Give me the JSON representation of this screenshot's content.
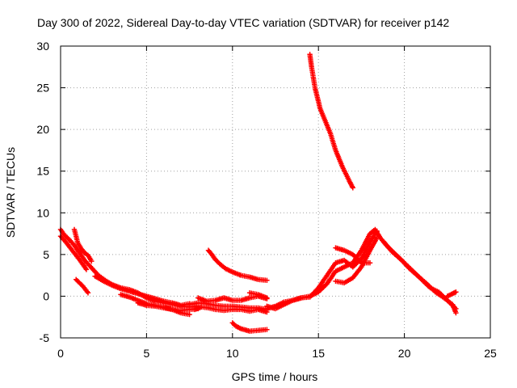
{
  "colors": {
    "series": "#ff0000",
    "grid": "#a0a0a0",
    "axis": "#000000"
  },
  "chart_data": {
    "type": "scatter",
    "title": "Day 300 of 2022, Sidereal Day-to-day VTEC variation (SDTVAR) for receiver p142",
    "xlabel": "GPS time / hours",
    "ylabel": "SDTVAR / TECUs",
    "xlim": [
      0,
      25
    ],
    "ylim": [
      -5,
      30
    ],
    "xticks": [
      0,
      5,
      10,
      15,
      20,
      25
    ],
    "yticks": [
      -5,
      0,
      5,
      10,
      15,
      20,
      25,
      30
    ],
    "grid": true,
    "marker": "plus",
    "series": [
      {
        "name": "SDTVAR",
        "segments": [
          [
            [
              0.0,
              8.0
            ],
            [
              0.2,
              7.4
            ],
            [
              0.5,
              6.8
            ],
            [
              0.8,
              6.1
            ],
            [
              1.1,
              5.2
            ],
            [
              1.4,
              4.3
            ],
            [
              1.8,
              3.4
            ],
            [
              2.2,
              2.5
            ],
            [
              2.6,
              1.9
            ],
            [
              3.0,
              1.4
            ],
            [
              3.5,
              1.0
            ],
            [
              4.0,
              0.8
            ],
            [
              4.5,
              0.4
            ],
            [
              5.0,
              -0.2
            ],
            [
              5.5,
              -0.6
            ],
            [
              6.0,
              -0.8
            ],
            [
              6.5,
              -1.0
            ],
            [
              7.0,
              -1.2
            ],
            [
              7.5,
              -1.3
            ],
            [
              8.0,
              -1.2
            ]
          ],
          [
            [
              0.0,
              7.2
            ],
            [
              0.3,
              6.5
            ],
            [
              0.6,
              5.7
            ],
            [
              0.9,
              4.9
            ],
            [
              1.2,
              4.1
            ],
            [
              1.5,
              3.2
            ]
          ],
          [
            [
              0.8,
              8.0
            ],
            [
              1.0,
              6.4
            ],
            [
              1.2,
              5.7
            ],
            [
              1.4,
              5.2
            ],
            [
              1.6,
              4.9
            ],
            [
              1.8,
              4.2
            ]
          ],
          [
            [
              0.9,
              2.0
            ],
            [
              1.1,
              1.6
            ],
            [
              1.3,
              1.2
            ],
            [
              1.6,
              0.4
            ]
          ],
          [
            [
              2.0,
              2.4
            ],
            [
              2.5,
              1.8
            ],
            [
              3.0,
              1.3
            ],
            [
              3.5,
              0.9
            ],
            [
              4.0,
              0.6
            ],
            [
              4.5,
              0.3
            ],
            [
              5.0,
              0.0
            ],
            [
              5.5,
              -0.3
            ],
            [
              6.0,
              -0.6
            ],
            [
              6.5,
              -0.8
            ],
            [
              7.0,
              -1.1
            ],
            [
              7.5,
              -0.9
            ]
          ],
          [
            [
              3.5,
              0.2
            ],
            [
              4.0,
              -0.1
            ],
            [
              4.5,
              -0.5
            ],
            [
              5.0,
              -0.9
            ],
            [
              5.5,
              -1.1
            ],
            [
              6.0,
              -1.3
            ],
            [
              6.5,
              -1.6
            ],
            [
              7.0,
              -2.0
            ],
            [
              7.5,
              -2.2
            ]
          ],
          [
            [
              4.5,
              -0.8
            ],
            [
              5.0,
              -1.1
            ],
            [
              5.5,
              -1.2
            ],
            [
              6.0,
              -1.4
            ],
            [
              6.5,
              -1.6
            ],
            [
              7.0,
              -1.7
            ],
            [
              7.5,
              -1.6
            ],
            [
              8.0,
              -1.5
            ]
          ],
          [
            [
              7.5,
              -1.0
            ],
            [
              8.0,
              -0.8
            ],
            [
              8.5,
              -0.9
            ],
            [
              9.0,
              -1.1
            ],
            [
              9.5,
              -1.2
            ],
            [
              10.0,
              -1.2
            ],
            [
              10.5,
              -1.3
            ],
            [
              11.0,
              -1.4
            ],
            [
              11.5,
              -1.4
            ],
            [
              12.0,
              -1.6
            ]
          ],
          [
            [
              7.8,
              -1.6
            ],
            [
              8.2,
              -1.3
            ],
            [
              8.6,
              -1.4
            ],
            [
              9.0,
              -1.6
            ],
            [
              9.5,
              -1.7
            ],
            [
              10.0,
              -1.6
            ],
            [
              10.5,
              -1.6
            ],
            [
              11.0,
              -1.8
            ],
            [
              11.5,
              -1.6
            ],
            [
              12.0,
              -1.9
            ]
          ],
          [
            [
              8.0,
              -0.2
            ],
            [
              8.5,
              -0.6
            ],
            [
              9.0,
              -0.5
            ],
            [
              9.5,
              -0.2
            ],
            [
              10.0,
              -0.5
            ],
            [
              10.5,
              -0.5
            ],
            [
              11.0,
              -0.2
            ],
            [
              11.5,
              0.0
            ],
            [
              12.0,
              -0.3
            ]
          ],
          [
            [
              8.6,
              5.5
            ],
            [
              8.8,
              5.0
            ],
            [
              9.0,
              4.4
            ],
            [
              9.3,
              3.8
            ],
            [
              9.6,
              3.3
            ],
            [
              10.0,
              2.9
            ],
            [
              10.5,
              2.5
            ],
            [
              11.0,
              2.3
            ],
            [
              11.5,
              2.0
            ],
            [
              12.0,
              1.9
            ]
          ],
          [
            [
              10.0,
              -3.2
            ],
            [
              10.2,
              -3.6
            ],
            [
              10.5,
              -3.9
            ],
            [
              11.0,
              -4.2
            ],
            [
              11.5,
              -4.1
            ],
            [
              12.0,
              -4.0
            ]
          ],
          [
            [
              11.0,
              0.4
            ],
            [
              11.5,
              0.2
            ],
            [
              12.0,
              -0.2
            ]
          ],
          [
            [
              12.0,
              -1.2
            ],
            [
              12.5,
              -1.5
            ],
            [
              13.0,
              -1.0
            ],
            [
              13.5,
              -0.5
            ],
            [
              14.0,
              -0.2
            ],
            [
              14.5,
              0.0
            ],
            [
              15.0,
              0.5
            ],
            [
              15.5,
              1.5
            ],
            [
              16.0,
              3.0
            ],
            [
              16.5,
              3.5
            ],
            [
              17.0,
              4.0
            ],
            [
              17.5,
              5.5
            ],
            [
              18.0,
              7.5
            ],
            [
              18.3,
              8.0
            ],
            [
              18.6,
              7.0
            ]
          ],
          [
            [
              12.0,
              -1.5
            ],
            [
              12.5,
              -1.2
            ],
            [
              13.0,
              -0.7
            ],
            [
              13.5,
              -0.5
            ],
            [
              14.0,
              -0.2
            ],
            [
              14.5,
              -0.1
            ],
            [
              15.0,
              1.0
            ],
            [
              15.5,
              2.5
            ],
            [
              16.0,
              4.0
            ],
            [
              16.5,
              4.3
            ],
            [
              17.0,
              3.5
            ],
            [
              17.5,
              4.5
            ],
            [
              18.0,
              6.5
            ],
            [
              18.4,
              7.8
            ]
          ],
          [
            [
              16.0,
              5.8
            ],
            [
              16.5,
              5.5
            ],
            [
              17.0,
              5.0
            ],
            [
              17.5,
              4.0
            ],
            [
              18.0,
              4.0
            ]
          ],
          [
            [
              16.0,
              1.8
            ],
            [
              16.5,
              1.6
            ],
            [
              17.0,
              2.2
            ],
            [
              17.5,
              3.5
            ],
            [
              18.0,
              5.5
            ],
            [
              18.4,
              7.0
            ]
          ],
          [
            [
              14.5,
              29.0
            ],
            [
              14.6,
              27.5
            ],
            [
              14.8,
              25.0
            ],
            [
              15.1,
              22.5
            ],
            [
              15.4,
              21.0
            ],
            [
              15.7,
              19.5
            ],
            [
              16.0,
              17.5
            ],
            [
              16.4,
              15.5
            ],
            [
              16.8,
              13.8
            ],
            [
              17.0,
              13.0
            ]
          ],
          [
            [
              18.6,
              7.0
            ],
            [
              19.0,
              6.0
            ],
            [
              19.5,
              5.0
            ],
            [
              20.0,
              4.0
            ],
            [
              20.5,
              3.0
            ],
            [
              21.0,
              2.0
            ],
            [
              21.5,
              1.0
            ],
            [
              22.0,
              0.5
            ],
            [
              22.5,
              -0.5
            ],
            [
              23.0,
              -1.5
            ]
          ],
          [
            [
              18.8,
              6.5
            ],
            [
              19.3,
              5.3
            ],
            [
              19.8,
              4.4
            ],
            [
              20.3,
              3.3
            ],
            [
              20.8,
              2.4
            ],
            [
              21.3,
              1.5
            ],
            [
              21.8,
              0.5
            ],
            [
              22.3,
              -0.2
            ],
            [
              22.8,
              -1.0
            ],
            [
              23.0,
              -2.0
            ]
          ],
          [
            [
              22.5,
              0.0
            ],
            [
              22.8,
              0.3
            ],
            [
              23.0,
              0.5
            ]
          ]
        ]
      }
    ]
  }
}
